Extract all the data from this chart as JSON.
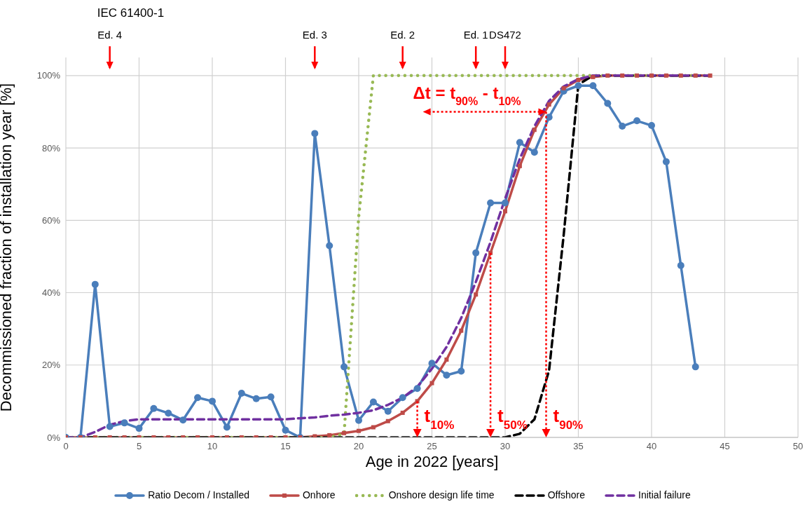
{
  "chart_data": {
    "type": "line",
    "xlabel": "Age in 2022 [years]",
    "ylabel": "Decommissioned fraction of installation year [%]",
    "x": [
      0,
      1,
      2,
      3,
      4,
      5,
      6,
      7,
      8,
      9,
      10,
      11,
      12,
      13,
      14,
      15,
      16,
      17,
      18,
      19,
      20,
      21,
      22,
      23,
      24,
      25,
      26,
      27,
      28,
      29,
      30,
      31,
      32,
      33,
      34,
      35,
      36,
      37,
      38,
      39,
      40,
      41,
      42,
      43,
      44
    ],
    "series": [
      {
        "name": "Ratio Decom / Installed",
        "color": "#4a7ebb",
        "marker": "circle",
        "line_style": "solid",
        "x": [
          0,
          1,
          2,
          3,
          4,
          5,
          6,
          7,
          8,
          9,
          10,
          11,
          12,
          13,
          14,
          15,
          16,
          17,
          18,
          19,
          20,
          21,
          22,
          23,
          24,
          25,
          26,
          27,
          28,
          29,
          30,
          31,
          32,
          33,
          34,
          35,
          36,
          37,
          38,
          39,
          40,
          41,
          42,
          43
        ],
        "values": [
          0,
          0,
          42.3,
          3,
          4,
          2.5,
          8,
          6.7,
          4.8,
          11,
          10,
          2.8,
          12.2,
          10.7,
          11.2,
          2,
          0,
          84,
          53,
          19.5,
          4.7,
          9.8,
          7.2,
          11,
          13.5,
          20.5,
          17.2,
          18.3,
          51,
          64.8,
          64.8,
          81.5,
          78.8,
          88.5,
          95.7,
          97.2,
          97.2,
          92.3,
          86,
          87.5,
          86.2,
          76.2,
          47.5,
          19.5
        ]
      },
      {
        "name": "Onhore",
        "color": "#be4b48",
        "marker": "square",
        "line_style": "solid",
        "values": [
          0,
          0,
          0,
          0,
          0,
          0,
          0,
          0,
          0,
          0,
          0,
          0,
          0,
          0,
          0,
          0,
          0,
          0.3,
          0.6,
          1.2,
          1.8,
          2.8,
          4.5,
          6.8,
          10,
          15,
          21.5,
          29.5,
          39.5,
          51,
          62.5,
          75,
          85,
          92,
          96.5,
          98.8,
          99.6,
          100,
          100,
          100,
          100,
          100,
          100,
          100,
          100
        ]
      },
      {
        "name": "Onshore design life time",
        "color": "#98b954",
        "marker": "none",
        "line_style": "dotted",
        "values": [
          0,
          0,
          0,
          0,
          0,
          0,
          0,
          0,
          0,
          0,
          0,
          0,
          0,
          0,
          0,
          0,
          0,
          0,
          0,
          1,
          61,
          100,
          100,
          100,
          100,
          100,
          100,
          100,
          100,
          100,
          100,
          100,
          100,
          100,
          100,
          100,
          100,
          100,
          100,
          100,
          100,
          100,
          100,
          100,
          100
        ]
      },
      {
        "name": "Offshore",
        "color": "#000000",
        "marker": "none",
        "line_style": "dashed",
        "values": [
          0,
          0,
          0,
          0,
          0,
          0,
          0,
          0,
          0,
          0,
          0,
          0,
          0,
          0,
          0,
          0,
          0,
          0,
          0,
          0,
          0,
          0,
          0,
          0,
          0,
          0,
          0,
          0,
          0,
          0,
          0,
          1,
          5,
          18.5,
          56,
          97.5,
          100,
          100,
          100,
          100,
          100,
          100,
          100,
          100,
          100
        ]
      },
      {
        "name": "Initial failure",
        "color": "#7030a0",
        "marker": "none",
        "line_style": "dashed",
        "values": [
          0,
          0,
          1.5,
          3.5,
          4.5,
          5,
          5,
          5,
          5,
          5,
          5,
          5,
          5,
          5,
          5,
          5,
          5.3,
          5.5,
          6,
          6.3,
          6.8,
          7.5,
          9,
          11,
          14,
          19,
          25,
          33,
          43,
          54,
          66,
          77,
          86,
          93,
          97,
          99,
          100,
          100,
          100,
          100,
          100,
          100,
          100,
          100,
          100
        ]
      }
    ],
    "xlim": [
      0,
      50
    ],
    "xticks": [
      0,
      5,
      10,
      15,
      20,
      25,
      30,
      35,
      40,
      45,
      50
    ],
    "ylim": [
      0,
      105
    ],
    "yticks": [
      {
        "value": 0,
        "label": "0%"
      },
      {
        "value": 20,
        "label": "20%"
      },
      {
        "value": 40,
        "label": "40%"
      },
      {
        "value": 60,
        "label": "60%"
      },
      {
        "value": 80,
        "label": "80%"
      },
      {
        "value": 100,
        "label": "100%"
      }
    ],
    "grid": true,
    "legend": "bottom",
    "annotations": [
      "IEC 61400-1",
      {
        "text": "Ed. 4",
        "x": 3
      },
      {
        "text": "Ed. 3",
        "x": 17
      },
      {
        "text": "Ed. 2",
        "x": 23
      },
      {
        "text": "Ed. 1",
        "x": 28
      },
      {
        "text": "DS472",
        "x": 30
      },
      {
        "text": "Δt = t$_{90%}$ - t$_{10%}$",
        "x": 32.8,
        "y": 90
      },
      {
        "text": "t$_{10%}$",
        "x": 24,
        "y": 10
      },
      {
        "text": "t$_{50%}$",
        "x": 29,
        "y": 51
      },
      {
        "text": "t$_{90%}$",
        "x": 32.8,
        "y": 90
      }
    ]
  }
}
